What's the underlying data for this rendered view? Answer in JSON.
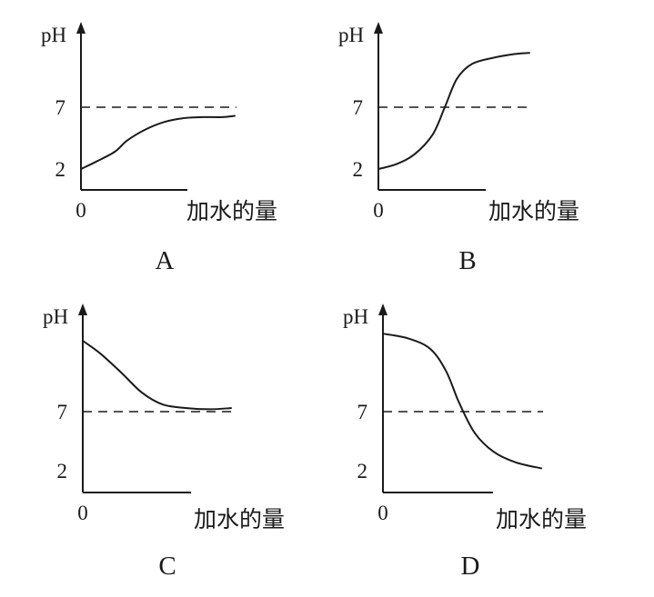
{
  "chart_data": [
    {
      "type": "line",
      "panel_label": "A",
      "ylabel": "pH",
      "xlabel": "加水的量",
      "origin_label": "0",
      "y_ticks": [
        "7",
        "2"
      ],
      "reference_line": {
        "y": 7,
        "style": "dashed"
      },
      "series": [
        {
          "values": [
            {
              "x": 0.0,
              "y": 2.0
            },
            {
              "x": 0.1,
              "y": 2.6
            },
            {
              "x": 0.22,
              "y": 3.4
            },
            {
              "x": 0.3,
              "y": 4.3
            },
            {
              "x": 0.42,
              "y": 5.2
            },
            {
              "x": 0.54,
              "y": 5.8
            },
            {
              "x": 0.66,
              "y": 6.1
            },
            {
              "x": 0.8,
              "y": 6.2
            },
            {
              "x": 0.92,
              "y": 6.2
            },
            {
              "x": 1.0,
              "y": 6.3
            }
          ]
        }
      ],
      "ylim": [
        0,
        11
      ],
      "xlim": [
        0,
        1.25
      ]
    },
    {
      "type": "line",
      "panel_label": "B",
      "ylabel": "pH",
      "xlabel": "加水的量",
      "origin_label": "0",
      "y_ticks": [
        "7",
        "2"
      ],
      "reference_line": {
        "y": 7,
        "style": "dashed"
      },
      "series": [
        {
          "values": [
            {
              "x": 0.0,
              "y": 2.0
            },
            {
              "x": 0.12,
              "y": 2.4
            },
            {
              "x": 0.24,
              "y": 3.2
            },
            {
              "x": 0.36,
              "y": 4.8
            },
            {
              "x": 0.44,
              "y": 7.0
            },
            {
              "x": 0.52,
              "y": 9.3
            },
            {
              "x": 0.62,
              "y": 10.5
            },
            {
              "x": 0.76,
              "y": 11.0
            },
            {
              "x": 0.9,
              "y": 11.3
            },
            {
              "x": 1.0,
              "y": 11.4
            }
          ]
        }
      ],
      "ylim": [
        0,
        12
      ],
      "xlim": [
        0,
        1.25
      ]
    },
    {
      "type": "line",
      "panel_label": "C",
      "ylabel": "pH",
      "xlabel": "加水的量",
      "origin_label": "0",
      "y_ticks": [
        "7",
        "2"
      ],
      "reference_line": {
        "y": 7,
        "style": "dashed"
      },
      "series": [
        {
          "values": [
            {
              "x": 0.0,
              "y": 13.0
            },
            {
              "x": 0.12,
              "y": 11.9
            },
            {
              "x": 0.26,
              "y": 10.3
            },
            {
              "x": 0.4,
              "y": 8.6
            },
            {
              "x": 0.54,
              "y": 7.6
            },
            {
              "x": 0.7,
              "y": 7.3
            },
            {
              "x": 0.86,
              "y": 7.2
            },
            {
              "x": 1.0,
              "y": 7.3
            }
          ]
        }
      ],
      "ylim": [
        0,
        15
      ],
      "xlim": [
        0,
        1.25
      ]
    },
    {
      "type": "line",
      "panel_label": "D",
      "ylabel": "pH",
      "xlabel": "加水的量",
      "origin_label": "0",
      "y_ticks": [
        "7",
        "2"
      ],
      "reference_line": {
        "y": 7,
        "style": "dashed"
      },
      "series": [
        {
          "values": [
            {
              "x": 0.0,
              "y": 13.6
            },
            {
              "x": 0.16,
              "y": 13.2
            },
            {
              "x": 0.3,
              "y": 12.3
            },
            {
              "x": 0.4,
              "y": 10.4
            },
            {
              "x": 0.48,
              "y": 7.8
            },
            {
              "x": 0.58,
              "y": 5.2
            },
            {
              "x": 0.7,
              "y": 3.6
            },
            {
              "x": 0.84,
              "y": 2.7
            },
            {
              "x": 1.0,
              "y": 2.2
            }
          ]
        }
      ],
      "ylim": [
        0,
        15
      ],
      "xlim": [
        0,
        1.25
      ]
    }
  ]
}
